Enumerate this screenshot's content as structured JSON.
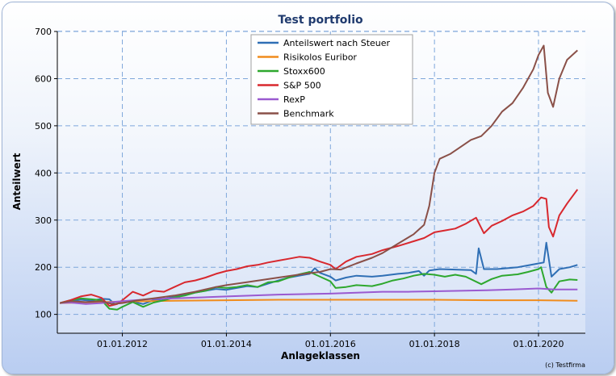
{
  "chart_data": {
    "type": "line",
    "title": "Test portfolio",
    "xlabel": "Anlageklassen",
    "ylabel": "Anteilwert",
    "xlim": [
      2010.75,
      2020.9
    ],
    "ylim": [
      60,
      700
    ],
    "x_ticks": [
      {
        "value": 2012.0,
        "label": "01.01.2012"
      },
      {
        "value": 2014.0,
        "label": "01.01.2014"
      },
      {
        "value": 2016.0,
        "label": "01.01.2016"
      },
      {
        "value": 2018.0,
        "label": "01.01.2018"
      },
      {
        "value": 2020.0,
        "label": "01.01.2020"
      }
    ],
    "y_ticks": [
      100,
      200,
      300,
      400,
      500,
      600,
      700
    ],
    "grid": true,
    "legend": "top-center",
    "footer": "(c) Testfirma",
    "series": [
      {
        "name": "Anteilswert nach Steuer",
        "color": "#2f6fb5",
        "points": [
          [
            2010.8,
            124
          ],
          [
            2011.0,
            128
          ],
          [
            2011.2,
            131
          ],
          [
            2011.4,
            129
          ],
          [
            2011.6,
            133
          ],
          [
            2011.75,
            132
          ],
          [
            2011.85,
            122
          ],
          [
            2012.0,
            125
          ],
          [
            2012.2,
            127
          ],
          [
            2012.4,
            122
          ],
          [
            2012.6,
            130
          ],
          [
            2012.8,
            133
          ],
          [
            2013.0,
            137
          ],
          [
            2013.2,
            142
          ],
          [
            2013.4,
            146
          ],
          [
            2013.6,
            150
          ],
          [
            2013.8,
            154
          ],
          [
            2014.0,
            152
          ],
          [
            2014.2,
            156
          ],
          [
            2014.4,
            160
          ],
          [
            2014.6,
            158
          ],
          [
            2014.8,
            165
          ],
          [
            2015.0,
            172
          ],
          [
            2015.2,
            178
          ],
          [
            2015.4,
            182
          ],
          [
            2015.6,
            186
          ],
          [
            2015.7,
            198
          ],
          [
            2015.8,
            188
          ],
          [
            2016.0,
            180
          ],
          [
            2016.1,
            172
          ],
          [
            2016.3,
            178
          ],
          [
            2016.5,
            182
          ],
          [
            2016.8,
            180
          ],
          [
            2017.0,
            182
          ],
          [
            2017.3,
            186
          ],
          [
            2017.5,
            188
          ],
          [
            2017.7,
            192
          ],
          [
            2017.8,
            182
          ],
          [
            2017.9,
            193
          ],
          [
            2018.1,
            196
          ],
          [
            2018.4,
            195
          ],
          [
            2018.7,
            194
          ],
          [
            2018.8,
            186
          ],
          [
            2018.85,
            240
          ],
          [
            2018.95,
            196
          ],
          [
            2019.2,
            196
          ],
          [
            2019.4,
            198
          ],
          [
            2019.6,
            200
          ],
          [
            2019.8,
            204
          ],
          [
            2020.0,
            208
          ],
          [
            2020.1,
            210
          ],
          [
            2020.15,
            252
          ],
          [
            2020.25,
            180
          ],
          [
            2020.4,
            196
          ],
          [
            2020.6,
            200
          ],
          [
            2020.75,
            205
          ]
        ]
      },
      {
        "name": "Risikolos Euribor",
        "color": "#f08c1c",
        "points": [
          [
            2010.8,
            124
          ],
          [
            2011.2,
            125
          ],
          [
            2011.6,
            126
          ],
          [
            2012.0,
            127
          ],
          [
            2012.5,
            128
          ],
          [
            2013.0,
            129
          ],
          [
            2014.0,
            130
          ],
          [
            2015.0,
            131
          ],
          [
            2016.0,
            131
          ],
          [
            2017.0,
            131
          ],
          [
            2018.0,
            131
          ],
          [
            2019.0,
            130
          ],
          [
            2020.0,
            130
          ],
          [
            2020.75,
            129
          ]
        ]
      },
      {
        "name": "Stoxx600",
        "color": "#2ea82e",
        "points": [
          [
            2010.8,
            124
          ],
          [
            2011.0,
            130
          ],
          [
            2011.2,
            134
          ],
          [
            2011.4,
            132
          ],
          [
            2011.6,
            130
          ],
          [
            2011.75,
            112
          ],
          [
            2011.9,
            110
          ],
          [
            2012.0,
            116
          ],
          [
            2012.2,
            126
          ],
          [
            2012.4,
            116
          ],
          [
            2012.6,
            125
          ],
          [
            2012.8,
            130
          ],
          [
            2013.0,
            136
          ],
          [
            2013.2,
            140
          ],
          [
            2013.4,
            146
          ],
          [
            2013.6,
            150
          ],
          [
            2013.8,
            158
          ],
          [
            2014.0,
            156
          ],
          [
            2014.2,
            158
          ],
          [
            2014.4,
            162
          ],
          [
            2014.6,
            158
          ],
          [
            2014.8,
            168
          ],
          [
            2015.0,
            170
          ],
          [
            2015.2,
            178
          ],
          [
            2015.4,
            185
          ],
          [
            2015.6,
            190
          ],
          [
            2015.8,
            180
          ],
          [
            2016.0,
            170
          ],
          [
            2016.1,
            156
          ],
          [
            2016.3,
            158
          ],
          [
            2016.5,
            162
          ],
          [
            2016.8,
            160
          ],
          [
            2017.0,
            165
          ],
          [
            2017.2,
            172
          ],
          [
            2017.4,
            176
          ],
          [
            2017.6,
            182
          ],
          [
            2017.8,
            186
          ],
          [
            2018.0,
            184
          ],
          [
            2018.2,
            180
          ],
          [
            2018.4,
            184
          ],
          [
            2018.6,
            180
          ],
          [
            2018.9,
            164
          ],
          [
            2019.1,
            175
          ],
          [
            2019.3,
            182
          ],
          [
            2019.6,
            185
          ],
          [
            2019.8,
            190
          ],
          [
            2020.0,
            196
          ],
          [
            2020.05,
            200
          ],
          [
            2020.15,
            158
          ],
          [
            2020.25,
            146
          ],
          [
            2020.4,
            170
          ],
          [
            2020.6,
            174
          ],
          [
            2020.75,
            173
          ]
        ]
      },
      {
        "name": "S&P 500",
        "color": "#d8282e",
        "points": [
          [
            2010.8,
            124
          ],
          [
            2011.0,
            130
          ],
          [
            2011.2,
            138
          ],
          [
            2011.4,
            142
          ],
          [
            2011.6,
            135
          ],
          [
            2011.75,
            118
          ],
          [
            2011.9,
            122
          ],
          [
            2012.0,
            130
          ],
          [
            2012.2,
            148
          ],
          [
            2012.4,
            140
          ],
          [
            2012.6,
            150
          ],
          [
            2012.8,
            148
          ],
          [
            2013.0,
            158
          ],
          [
            2013.2,
            168
          ],
          [
            2013.4,
            172
          ],
          [
            2013.6,
            178
          ],
          [
            2013.8,
            186
          ],
          [
            2014.0,
            192
          ],
          [
            2014.2,
            196
          ],
          [
            2014.4,
            202
          ],
          [
            2014.6,
            205
          ],
          [
            2014.8,
            210
          ],
          [
            2015.0,
            214
          ],
          [
            2015.2,
            218
          ],
          [
            2015.4,
            222
          ],
          [
            2015.6,
            220
          ],
          [
            2015.8,
            212
          ],
          [
            2016.0,
            205
          ],
          [
            2016.1,
            196
          ],
          [
            2016.3,
            212
          ],
          [
            2016.5,
            222
          ],
          [
            2016.8,
            228
          ],
          [
            2017.0,
            236
          ],
          [
            2017.3,
            245
          ],
          [
            2017.6,
            255
          ],
          [
            2017.8,
            262
          ],
          [
            2018.0,
            274
          ],
          [
            2018.2,
            278
          ],
          [
            2018.4,
            282
          ],
          [
            2018.6,
            292
          ],
          [
            2018.8,
            305
          ],
          [
            2018.95,
            272
          ],
          [
            2019.1,
            288
          ],
          [
            2019.3,
            298
          ],
          [
            2019.5,
            310
          ],
          [
            2019.7,
            318
          ],
          [
            2019.9,
            330
          ],
          [
            2020.05,
            348
          ],
          [
            2020.15,
            345
          ],
          [
            2020.2,
            285
          ],
          [
            2020.28,
            265
          ],
          [
            2020.4,
            310
          ],
          [
            2020.55,
            335
          ],
          [
            2020.75,
            365
          ]
        ]
      },
      {
        "name": "RexP",
        "color": "#9a5ad0",
        "points": [
          [
            2010.8,
            124
          ],
          [
            2011.0,
            125
          ],
          [
            2011.3,
            122
          ],
          [
            2011.6,
            124
          ],
          [
            2012.0,
            128
          ],
          [
            2012.5,
            132
          ],
          [
            2013.0,
            134
          ],
          [
            2013.5,
            136
          ],
          [
            2014.0,
            138
          ],
          [
            2014.5,
            140
          ],
          [
            2015.0,
            142
          ],
          [
            2015.5,
            143
          ],
          [
            2016.0,
            144
          ],
          [
            2016.5,
            146
          ],
          [
            2017.0,
            148
          ],
          [
            2017.5,
            148
          ],
          [
            2018.0,
            149
          ],
          [
            2018.5,
            150
          ],
          [
            2019.0,
            151
          ],
          [
            2019.5,
            153
          ],
          [
            2020.0,
            155
          ],
          [
            2020.3,
            153
          ],
          [
            2020.75,
            153
          ]
        ]
      },
      {
        "name": "Benchmark",
        "color": "#8a5048",
        "points": [
          [
            2010.8,
            124
          ],
          [
            2011.0,
            128
          ],
          [
            2011.3,
            126
          ],
          [
            2011.6,
            128
          ],
          [
            2011.8,
            122
          ],
          [
            2012.0,
            124
          ],
          [
            2012.3,
            130
          ],
          [
            2012.6,
            134
          ],
          [
            2013.0,
            140
          ],
          [
            2013.4,
            148
          ],
          [
            2013.8,
            158
          ],
          [
            2014.0,
            162
          ],
          [
            2014.5,
            170
          ],
          [
            2015.0,
            178
          ],
          [
            2015.5,
            186
          ],
          [
            2015.8,
            190
          ],
          [
            2016.0,
            196
          ],
          [
            2016.2,
            195
          ],
          [
            2016.5,
            208
          ],
          [
            2016.8,
            220
          ],
          [
            2017.0,
            230
          ],
          [
            2017.3,
            250
          ],
          [
            2017.6,
            270
          ],
          [
            2017.8,
            290
          ],
          [
            2017.9,
            330
          ],
          [
            2018.0,
            400
          ],
          [
            2018.1,
            430
          ],
          [
            2018.3,
            440
          ],
          [
            2018.5,
            455
          ],
          [
            2018.7,
            470
          ],
          [
            2018.9,
            478
          ],
          [
            2019.1,
            500
          ],
          [
            2019.3,
            530
          ],
          [
            2019.5,
            548
          ],
          [
            2019.7,
            580
          ],
          [
            2019.9,
            620
          ],
          [
            2020.0,
            650
          ],
          [
            2020.1,
            670
          ],
          [
            2020.18,
            570
          ],
          [
            2020.28,
            540
          ],
          [
            2020.4,
            600
          ],
          [
            2020.55,
            640
          ],
          [
            2020.75,
            660
          ]
        ]
      }
    ]
  }
}
